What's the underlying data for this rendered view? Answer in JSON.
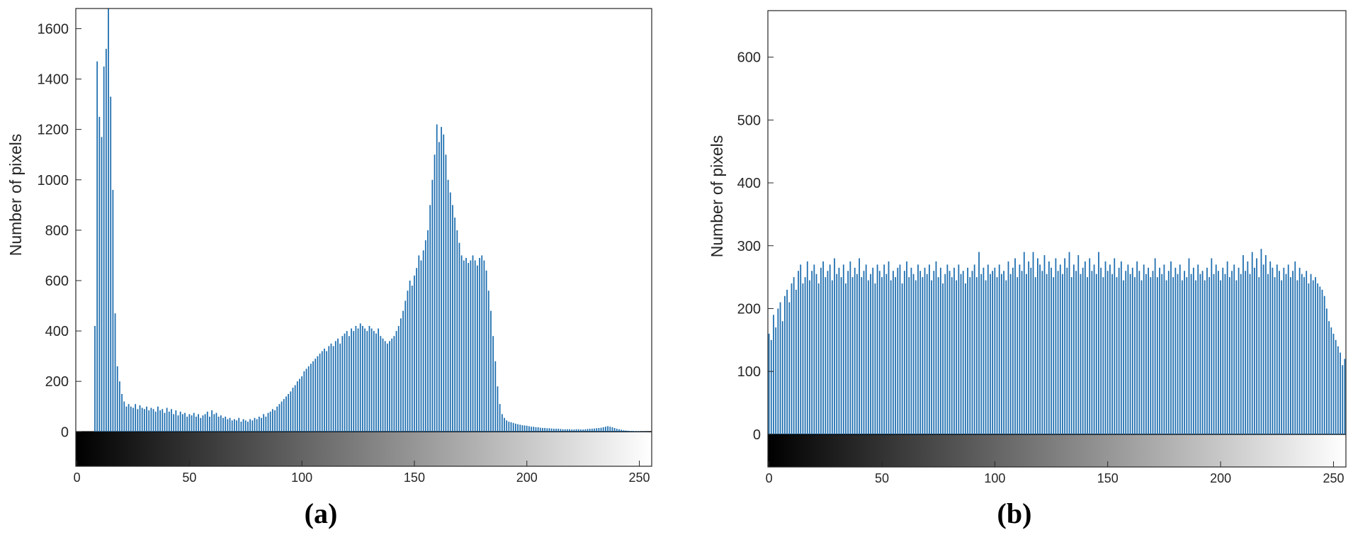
{
  "chart_data": [
    {
      "type": "bar",
      "caption": "(a)",
      "ylabel": "Number of pixels",
      "color": "#1f6fb0",
      "x": [
        0,
        1,
        2,
        3,
        4,
        5,
        6,
        7,
        8,
        9,
        10,
        11,
        12,
        13,
        14,
        15,
        16,
        17,
        18,
        19,
        20,
        21,
        22,
        23,
        24,
        25,
        26,
        27,
        28,
        29,
        30,
        31,
        32,
        33,
        34,
        35,
        36,
        37,
        38,
        39,
        40,
        41,
        42,
        43,
        44,
        45,
        46,
        47,
        48,
        49,
        50,
        51,
        52,
        53,
        54,
        55,
        56,
        57,
        58,
        59,
        60,
        61,
        62,
        63,
        64,
        65,
        66,
        67,
        68,
        69,
        70,
        71,
        72,
        73,
        74,
        75,
        76,
        77,
        78,
        79,
        80,
        81,
        82,
        83,
        84,
        85,
        86,
        87,
        88,
        89,
        90,
        91,
        92,
        93,
        94,
        95,
        96,
        97,
        98,
        99,
        100,
        101,
        102,
        103,
        104,
        105,
        106,
        107,
        108,
        109,
        110,
        111,
        112,
        113,
        114,
        115,
        116,
        117,
        118,
        119,
        120,
        121,
        122,
        123,
        124,
        125,
        126,
        127,
        128,
        129,
        130,
        131,
        132,
        133,
        134,
        135,
        136,
        137,
        138,
        139,
        140,
        141,
        142,
        143,
        144,
        145,
        146,
        147,
        148,
        149,
        150,
        151,
        152,
        153,
        154,
        155,
        156,
        157,
        158,
        159,
        160,
        161,
        162,
        163,
        164,
        165,
        166,
        167,
        168,
        169,
        170,
        171,
        172,
        173,
        174,
        175,
        176,
        177,
        178,
        179,
        180,
        181,
        182,
        183,
        184,
        185,
        186,
        187,
        188,
        189,
        190,
        191,
        192,
        193,
        194,
        195,
        196,
        197,
        198,
        199,
        200,
        201,
        202,
        203,
        204,
        205,
        206,
        207,
        208,
        209,
        210,
        211,
        212,
        213,
        214,
        215,
        216,
        217,
        218,
        219,
        220,
        221,
        222,
        223,
        224,
        225,
        226,
        227,
        228,
        229,
        230,
        231,
        232,
        233,
        234,
        235,
        236,
        237,
        238,
        239,
        240,
        241,
        242,
        243,
        244,
        245,
        246,
        247,
        248,
        249,
        250,
        251,
        252,
        253,
        254,
        255
      ],
      "values": [
        0,
        0,
        0,
        0,
        0,
        0,
        0,
        0,
        420,
        1470,
        1250,
        1170,
        1450,
        1520,
        1700,
        1330,
        960,
        470,
        260,
        200,
        150,
        120,
        100,
        110,
        100,
        95,
        110,
        90,
        105,
        95,
        90,
        100,
        85,
        95,
        90,
        80,
        100,
        85,
        90,
        75,
        95,
        80,
        90,
        70,
        85,
        65,
        80,
        70,
        75,
        60,
        70,
        65,
        75,
        60,
        70,
        55,
        65,
        70,
        80,
        60,
        85,
        70,
        75,
        60,
        65,
        55,
        60,
        50,
        55,
        45,
        50,
        45,
        55,
        40,
        50,
        45,
        40,
        50,
        45,
        55,
        50,
        60,
        55,
        70,
        60,
        75,
        80,
        90,
        85,
        100,
        110,
        120,
        130,
        140,
        150,
        160,
        175,
        185,
        200,
        210,
        220,
        240,
        250,
        260,
        270,
        280,
        290,
        300,
        310,
        320,
        330,
        320,
        340,
        350,
        340,
        360,
        370,
        350,
        380,
        390,
        400,
        380,
        410,
        400,
        420,
        410,
        430,
        420,
        410,
        400,
        420,
        410,
        400,
        390,
        410,
        380,
        370,
        360,
        350,
        360,
        370,
        380,
        400,
        420,
        450,
        480,
        520,
        560,
        600,
        580,
        620,
        650,
        700,
        680,
        720,
        760,
        800,
        900,
        1000,
        1100,
        1220,
        1150,
        1210,
        1180,
        1100,
        1000,
        950,
        900,
        850,
        800,
        750,
        700,
        680,
        690,
        670,
        680,
        700,
        680,
        660,
        690,
        700,
        680,
        640,
        560,
        480,
        380,
        280,
        180,
        110,
        70,
        55,
        45,
        40,
        38,
        35,
        32,
        30,
        28,
        26,
        25,
        24,
        22,
        20,
        20,
        18,
        18,
        16,
        15,
        15,
        14,
        14,
        13,
        12,
        12,
        12,
        11,
        10,
        10,
        10,
        10,
        9,
        9,
        10,
        10,
        9,
        9,
        10,
        11,
        12,
        12,
        13,
        14,
        15,
        16,
        18,
        20,
        22,
        20,
        18,
        15,
        12,
        10,
        8,
        6,
        5,
        4,
        3,
        3,
        2,
        2,
        2,
        1,
        1,
        1,
        0,
        0
      ],
      "xlim": [
        -0.5,
        255.5
      ],
      "xticks": [
        0,
        50,
        100,
        150,
        200,
        250
      ],
      "ylim": [
        -137,
        1680
      ],
      "yticks": [
        0,
        200,
        400,
        600,
        800,
        1000,
        1200,
        1400,
        1600
      ]
    },
    {
      "type": "bar",
      "caption": "(b)",
      "ylabel": "Number of pixels",
      "color": "#1f6fb0",
      "x": [
        0,
        1,
        2,
        3,
        4,
        5,
        6,
        7,
        8,
        9,
        10,
        11,
        12,
        13,
        14,
        15,
        16,
        17,
        18,
        19,
        20,
        21,
        22,
        23,
        24,
        25,
        26,
        27,
        28,
        29,
        30,
        31,
        32,
        33,
        34,
        35,
        36,
        37,
        38,
        39,
        40,
        41,
        42,
        43,
        44,
        45,
        46,
        47,
        48,
        49,
        50,
        51,
        52,
        53,
        54,
        55,
        56,
        57,
        58,
        59,
        60,
        61,
        62,
        63,
        64,
        65,
        66,
        67,
        68,
        69,
        70,
        71,
        72,
        73,
        74,
        75,
        76,
        77,
        78,
        79,
        80,
        81,
        82,
        83,
        84,
        85,
        86,
        87,
        88,
        89,
        90,
        91,
        92,
        93,
        94,
        95,
        96,
        97,
        98,
        99,
        100,
        101,
        102,
        103,
        104,
        105,
        106,
        107,
        108,
        109,
        110,
        111,
        112,
        113,
        114,
        115,
        116,
        117,
        118,
        119,
        120,
        121,
        122,
        123,
        124,
        125,
        126,
        127,
        128,
        129,
        130,
        131,
        132,
        133,
        134,
        135,
        136,
        137,
        138,
        139,
        140,
        141,
        142,
        143,
        144,
        145,
        146,
        147,
        148,
        149,
        150,
        151,
        152,
        153,
        154,
        155,
        156,
        157,
        158,
        159,
        160,
        161,
        162,
        163,
        164,
        165,
        166,
        167,
        168,
        169,
        170,
        171,
        172,
        173,
        174,
        175,
        176,
        177,
        178,
        179,
        180,
        181,
        182,
        183,
        184,
        185,
        186,
        187,
        188,
        189,
        190,
        191,
        192,
        193,
        194,
        195,
        196,
        197,
        198,
        199,
        200,
        201,
        202,
        203,
        204,
        205,
        206,
        207,
        208,
        209,
        210,
        211,
        212,
        213,
        214,
        215,
        216,
        217,
        218,
        219,
        220,
        221,
        222,
        223,
        224,
        225,
        226,
        227,
        228,
        229,
        230,
        231,
        232,
        233,
        234,
        235,
        236,
        237,
        238,
        239,
        240,
        241,
        242,
        243,
        244,
        245,
        246,
        247,
        248,
        249,
        250,
        251,
        252,
        253,
        254,
        255
      ],
      "values": [
        160,
        150,
        190,
        170,
        200,
        210,
        180,
        220,
        230,
        210,
        240,
        250,
        230,
        260,
        270,
        240,
        250,
        275,
        245,
        260,
        270,
        255,
        240,
        265,
        275,
        250,
        260,
        270,
        245,
        280,
        255,
        265,
        250,
        270,
        240,
        260,
        275,
        250,
        265,
        255,
        280,
        250,
        260,
        270,
        245,
        255,
        265,
        240,
        270,
        260,
        250,
        270,
        255,
        275,
        245,
        260,
        250,
        265,
        270,
        240,
        260,
        275,
        250,
        265,
        255,
        245,
        270,
        260,
        250,
        265,
        255,
        270,
        245,
        260,
        275,
        250,
        265,
        240,
        255,
        270,
        260,
        250,
        265,
        245,
        270,
        255,
        260,
        240,
        265,
        250,
        260,
        270,
        250,
        290,
        255,
        265,
        245,
        270,
        255,
        260,
        265,
        250,
        270,
        255,
        260,
        245,
        275,
        255,
        265,
        280,
        250,
        270,
        260,
        290,
        255,
        275,
        265,
        290,
        250,
        280,
        270,
        260,
        285,
        255,
        275,
        265,
        250,
        280,
        260,
        270,
        255,
        280,
        265,
        290,
        250,
        270,
        260,
        285,
        255,
        265,
        275,
        250,
        280,
        260,
        270,
        255,
        290,
        265,
        250,
        275,
        260,
        270,
        255,
        280,
        250,
        265,
        275,
        245,
        260,
        270,
        255,
        265,
        250,
        275,
        260,
        245,
        270,
        255,
        265,
        250,
        260,
        280,
        250,
        265,
        255,
        270,
        245,
        260,
        275,
        250,
        265,
        255,
        270,
        245,
        260,
        250,
        280,
        255,
        265,
        245,
        270,
        255,
        260,
        245,
        265,
        250,
        280,
        255,
        270,
        260,
        245,
        265,
        255,
        275,
        250,
        260,
        270,
        245,
        265,
        255,
        285,
        260,
        275,
        255,
        290,
        265,
        280,
        250,
        295,
        270,
        285,
        255,
        275,
        265,
        250,
        270,
        260,
        245,
        265,
        255,
        270,
        250,
        260,
        275,
        245,
        265,
        255,
        250,
        260,
        240,
        255,
        245,
        250,
        240,
        235,
        230,
        220,
        200,
        180,
        170,
        160,
        150,
        140,
        130,
        110,
        120
      ],
      "xlim": [
        -0.5,
        255.5
      ],
      "xticks": [
        0,
        50,
        100,
        150,
        200,
        250
      ],
      "ylim": [
        -52,
        674
      ],
      "yticks": [
        0,
        100,
        200,
        300,
        400,
        500,
        600
      ]
    }
  ]
}
